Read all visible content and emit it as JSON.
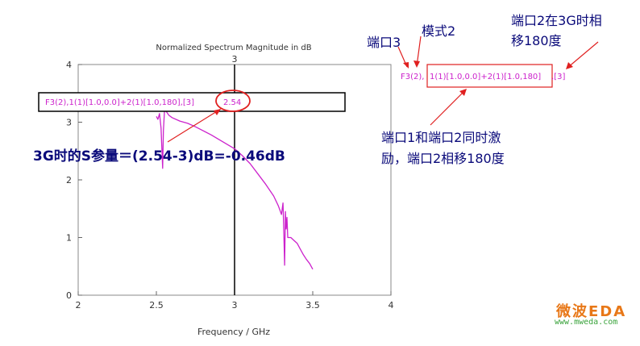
{
  "chart_data": {
    "type": "line",
    "title": "Normalized Spectrum Magnitude in dB",
    "xlabel": "Frequency / GHz",
    "ylabel": "",
    "xlim": [
      2,
      4
    ],
    "ylim": [
      0,
      4
    ],
    "x_ticks": [
      "2",
      "2.5",
      "3",
      "3.5",
      "4"
    ],
    "y_ticks": [
      "0",
      "1",
      "2",
      "3",
      "4"
    ],
    "grid": false,
    "legend": "none",
    "marker": {
      "x": 3,
      "label": "3"
    },
    "series": [
      {
        "color": "#cc22cc",
        "x": [
          2.5,
          2.51,
          2.52,
          2.53,
          2.54,
          2.545,
          2.55,
          2.555,
          2.56,
          2.58,
          2.6,
          2.65,
          2.7,
          2.75,
          2.8,
          2.85,
          2.9,
          2.95,
          3.0,
          3.05,
          3.1,
          3.15,
          3.2,
          3.25,
          3.28,
          3.3,
          3.31,
          3.315,
          3.32,
          3.325,
          3.33,
          3.335,
          3.34,
          3.36,
          3.38,
          3.4,
          3.42,
          3.44,
          3.46,
          3.48,
          3.5
        ],
        "y": [
          3.1,
          3.05,
          3.15,
          2.9,
          2.2,
          2.85,
          3.1,
          3.35,
          3.2,
          3.12,
          3.08,
          3.02,
          2.98,
          2.92,
          2.85,
          2.78,
          2.7,
          2.62,
          2.54,
          2.42,
          2.28,
          2.1,
          1.92,
          1.72,
          1.55,
          1.4,
          1.6,
          1.1,
          0.52,
          1.45,
          1.15,
          1.35,
          1.0,
          1.0,
          0.95,
          0.9,
          0.8,
          0.7,
          0.62,
          0.55,
          0.45
        ]
      }
    ],
    "readout": {
      "label": "F3(2),1(1)[1.0,0.0]+2(1)[1.0,180],[3]",
      "value": "2.54"
    },
    "annotations": {
      "s_param": "3G时的S参量＝(2.54-3)dB=-0.46dB",
      "port3": "端口3",
      "mode2": "模式2",
      "phase_shift": [
        "端口2在3G时相",
        "移180度"
      ],
      "excitation": [
        "端口1和端口2同时激",
        "励，端口2相移180度"
      ],
      "legend_label": {
        "prefix": "F3(2),",
        "boxed": "1(1)[1.0,0.0]+2(1)[1.0,180]",
        "suffix": ",[3]"
      }
    }
  },
  "watermark": {
    "logo": "微波EDA",
    "url": "www.mweda.com"
  },
  "colors": {
    "curve": "#cc22cc",
    "annotation_text": "#0a0a7a",
    "callout": "#e02020",
    "readout_text": "#cc22cc",
    "logo": "#e87818"
  }
}
